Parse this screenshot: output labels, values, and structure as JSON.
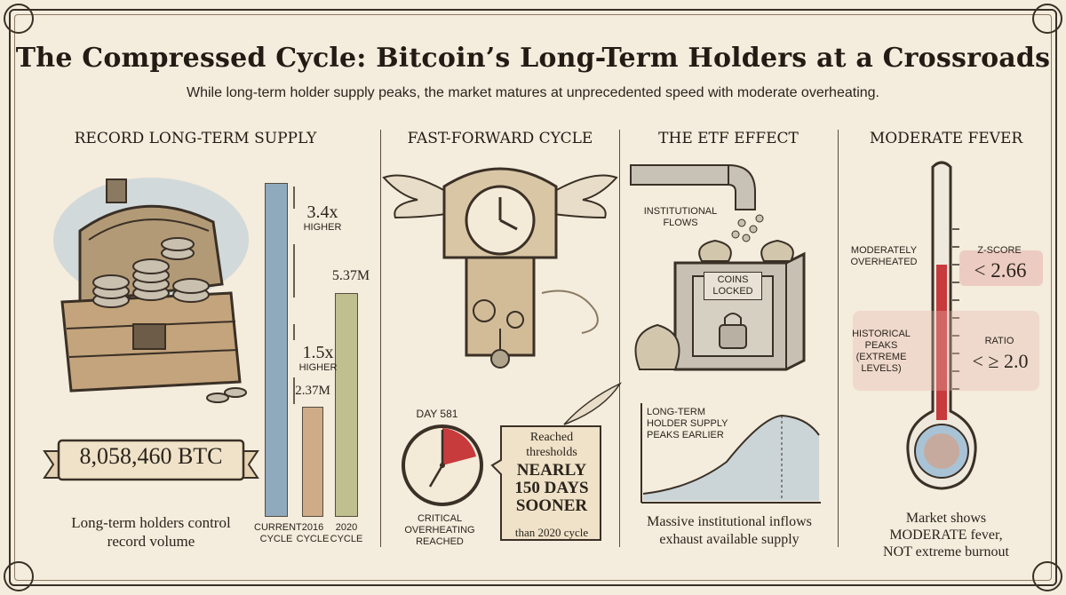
{
  "header": {
    "title": "The Compressed Cycle: Bitcoin’s Long-Term Holders at a Crossroads",
    "subtitle": "While long-term holder supply peaks, the market matures at unprecedented speed with moderate overheating."
  },
  "panel1": {
    "heading": "RECORD LONG-TERM SUPPLY",
    "banner_value": "8,058,460 BTC",
    "caption": "Long-term holders control record volume",
    "bars": [
      {
        "label": "CURRENT CYCLE",
        "color": "#7f9fb8"
      },
      {
        "label": "2016 CYCLE",
        "color": "#c9a07a"
      },
      {
        "label": "2020 CYCLE",
        "color": "#b7b883"
      }
    ],
    "annotations": {
      "higher_34": "3.4x",
      "higher_34_sub": "HIGHER",
      "higher_15": "1.5x",
      "higher_15_sub": "HIGHER",
      "v2016": "2.37M",
      "v2020": "5.37M"
    }
  },
  "panel2": {
    "heading": "FAST-FORWARD CYCLE",
    "day_label": "DAY 581",
    "timer_caption": "CRITICAL OVERHEATING REACHED",
    "note_line1": "Reached",
    "note_line2": "thresholds",
    "note_big": "NEARLY 150 DAYS SOONER",
    "note_tail": "than 2020 cycle"
  },
  "panel3": {
    "heading": "THE ETF EFFECT",
    "flows_label": "INSTITUTIONAL FLOWS",
    "vault_label": "COINS LOCKED",
    "curve_label": "LONG-TERM HOLDER SUPPLY PEAKS EARLIER",
    "caption": "Massive institutional inflows exhaust available supply"
  },
  "panel4": {
    "heading": "MODERATE FEVER",
    "left_top": "MODERATELY OVERHEATED",
    "left_mid": "HISTORICAL PEAKS (EXTREME LEVELS)",
    "zscore_label": "Z-SCORE",
    "zscore_value": "< 2.66",
    "ratio_label": "RATIO",
    "ratio_value": "< ≥ 2.0",
    "caption_line1": "Market shows",
    "caption_line2": "MODERATE fever,",
    "caption_line3": "NOT extreme burnout"
  },
  "colors": {
    "ink": "#2b241c",
    "paper": "#f4ecdc",
    "accent_red": "#c2282b",
    "bar_current": "#7f9fb8",
    "bar_2016": "#c9a07a",
    "bar_2020": "#b7b883"
  }
}
